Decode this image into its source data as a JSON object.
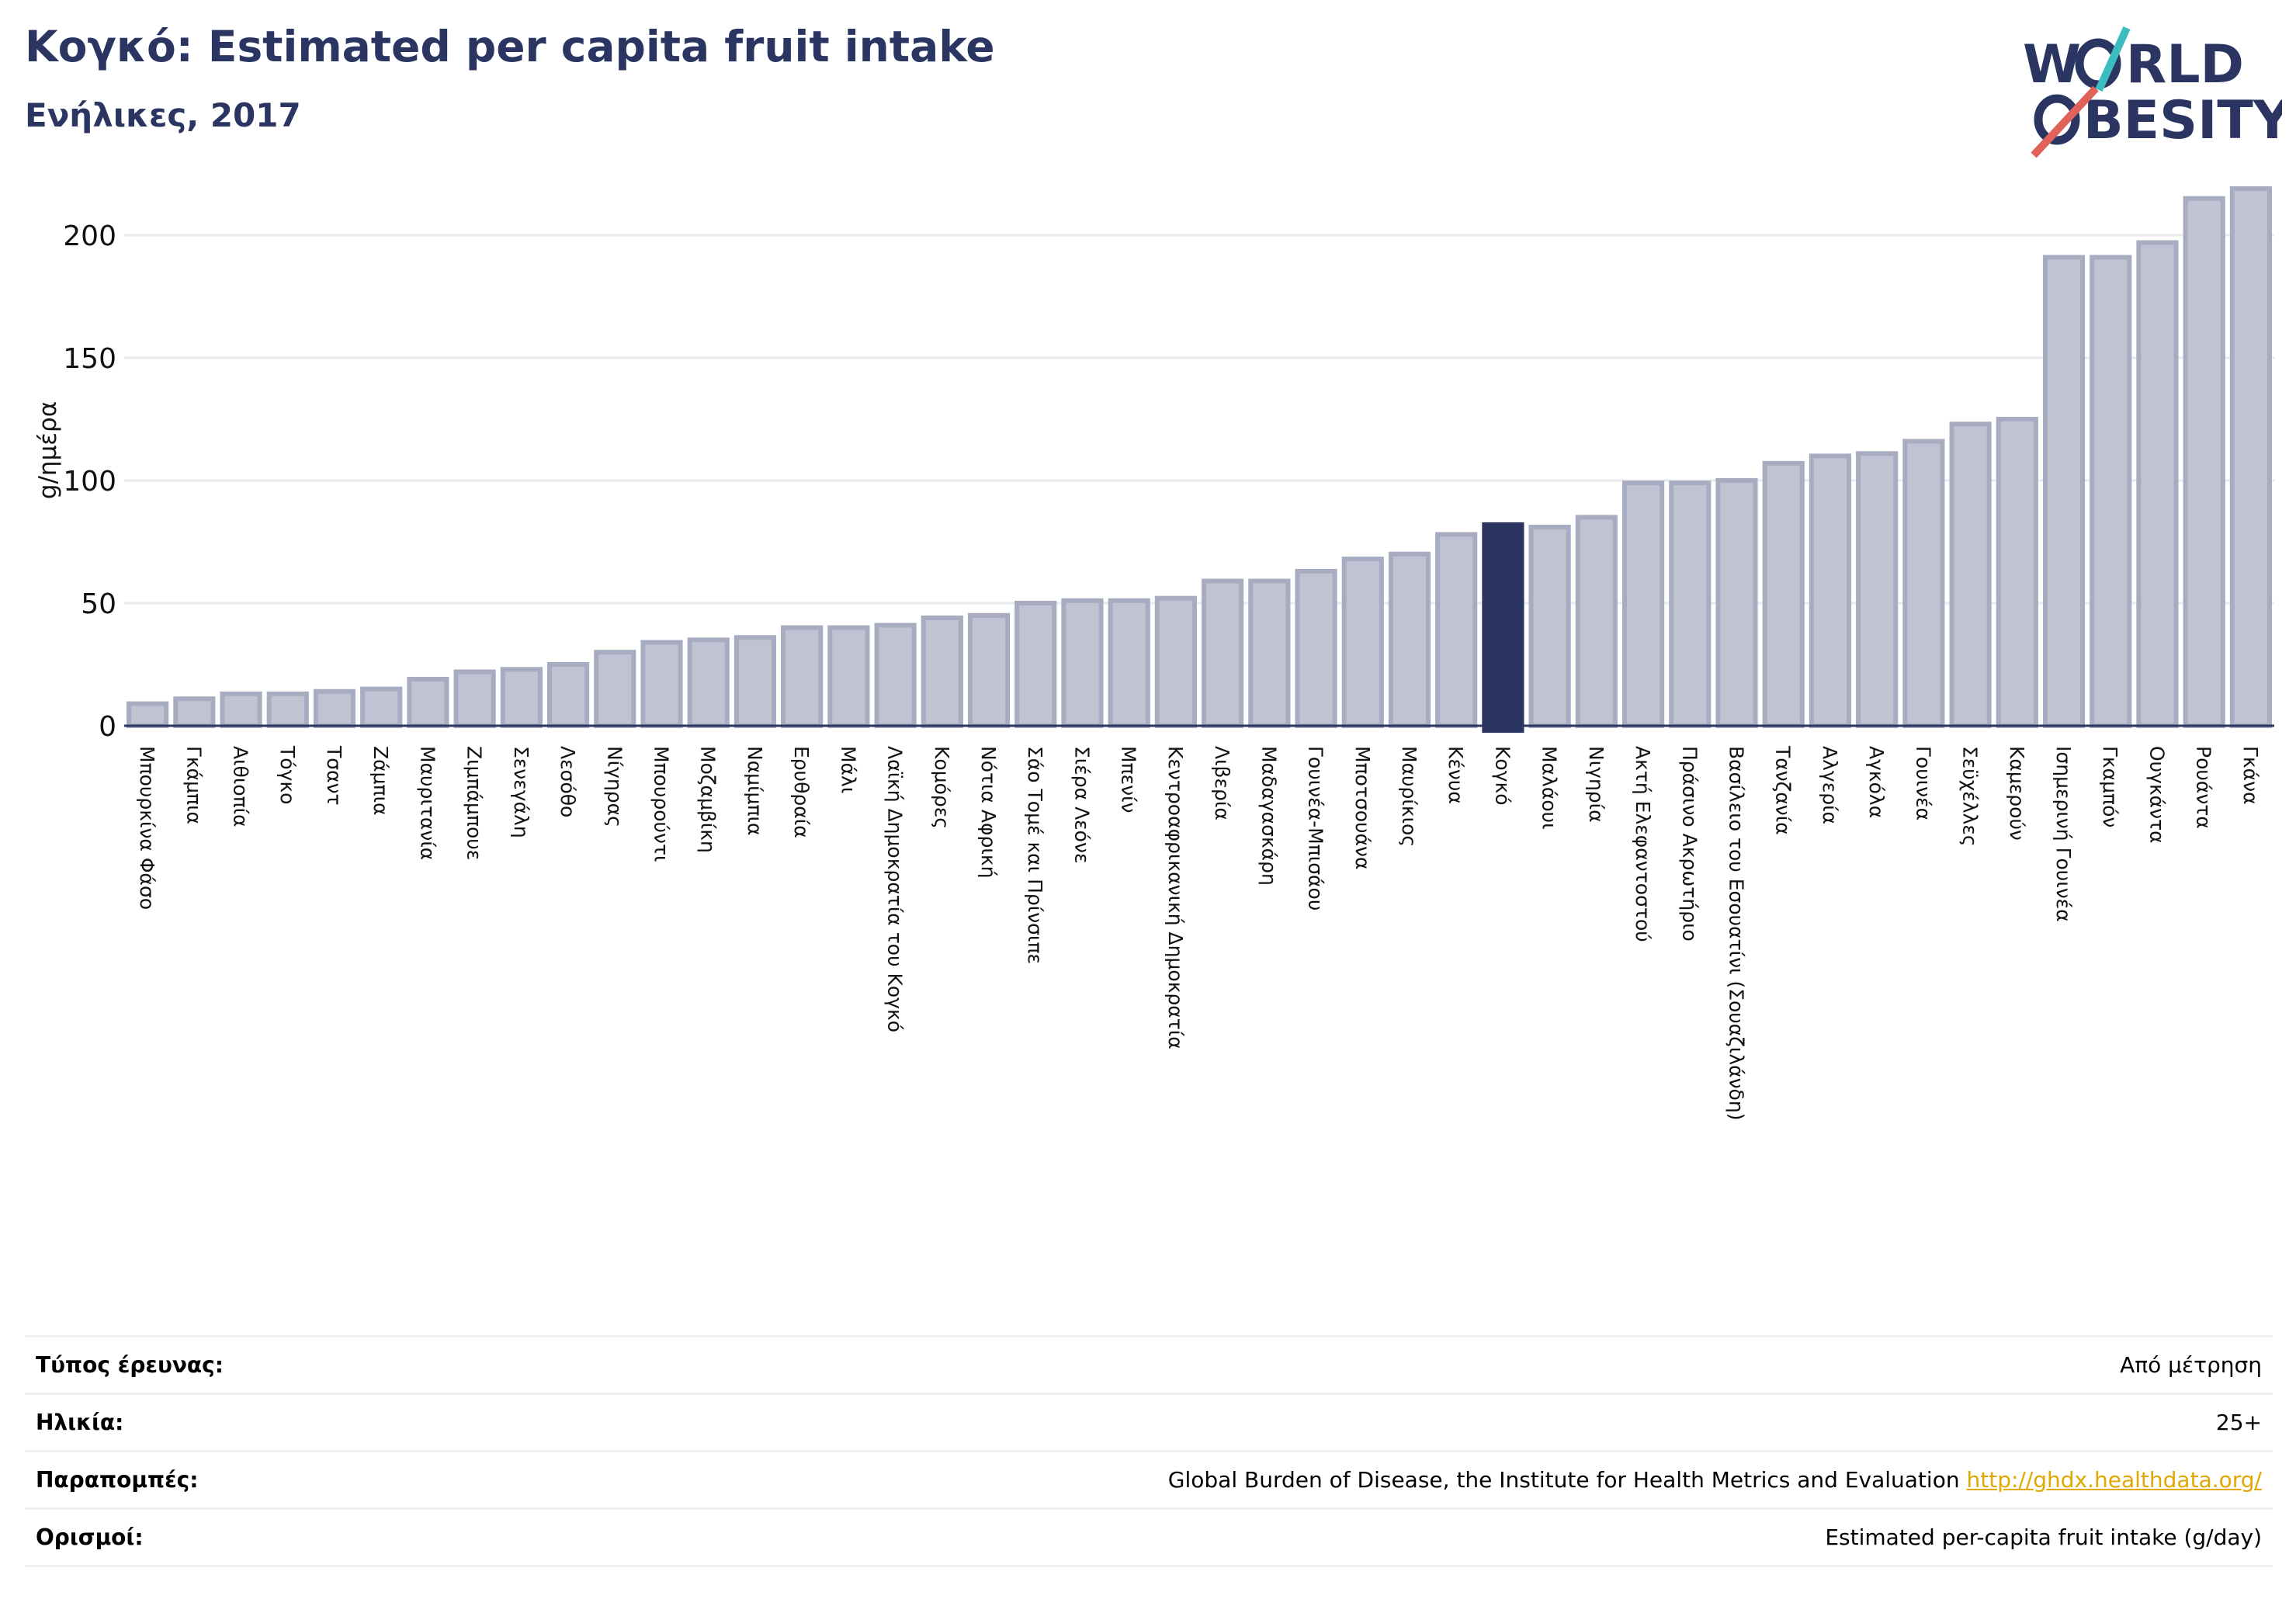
{
  "header": {
    "title": "Κογκό: Estimated per capita fruit intake",
    "subtitle": "Ενήλικες, 2017"
  },
  "logo": {
    "line1": "WORLD",
    "line2": "OBESITY"
  },
  "chart_data": {
    "type": "bar",
    "ylabel": "g/ημέρα",
    "ylim": [
      0,
      220
    ],
    "yticks": [
      0,
      50,
      100,
      150,
      200
    ],
    "grid": true,
    "highlight": "Κογκό",
    "colors": {
      "bar": "#c0c3d2",
      "bar_edge": "#a8acc1",
      "highlight": "#2a3562",
      "grid": "#e8eaef",
      "axis": "#2a3562"
    },
    "categories": [
      "Μπουρκίνα Φάσο",
      "Γκάμπια",
      "Αιθιοπία",
      "Τόγκο",
      "Τσαντ",
      "Ζάμπια",
      "Μαυριτανία",
      "Ζιμπάμπουε",
      "Σενεγάλη",
      "Λεσόθο",
      "Νίγηρας",
      "Μπουρούντι",
      "Μοζαμβίκη",
      "Ναμίμπια",
      "Ερυθραία",
      "Μάλι",
      "Λαϊκή Δημοκρατία του Κογκό",
      "Κομόρες",
      "Νότια Αφρική",
      "Σάο Τομέ και Πρίνσιπε",
      "Σιέρα Λεόνε",
      "Μπενίν",
      "Κεντροαφρικανική Δημοκρατία",
      "Λιβερία",
      "Μαδαγασκάρη",
      "Γουινέα-Μπισάου",
      "Μποτσουάνα",
      "Μαυρίκιος",
      "Κένυα",
      "Κογκό",
      "Μαλάουι",
      "Νιγηρία",
      "Ακτή Ελεφαντοστού",
      "Πράσινο Ακρωτήριο",
      "Βασίλειο του Εσουατίνι (Σουαζιλάνδη)",
      "Τανζανία",
      "Αλγερία",
      "Αγκόλα",
      "Γουινέα",
      "Σεϋχέλλες",
      "Καμερούν",
      "Ισημερινή Γουινέα",
      "Γκαμπόν",
      "Ουγκάντα",
      "Ρουάντα",
      "Γκάνα"
    ],
    "values": [
      9,
      11,
      13,
      13,
      14,
      15,
      19,
      22,
      23,
      25,
      30,
      34,
      35,
      36,
      40,
      40,
      41,
      44,
      45,
      50,
      51,
      51,
      52,
      59,
      59,
      63,
      68,
      70,
      78,
      82,
      81,
      85,
      99,
      99,
      100,
      107,
      110,
      111,
      116,
      123,
      125,
      191,
      191,
      197,
      215,
      219
    ]
  },
  "info": {
    "rows": [
      {
        "key": "Τύπος έρευνας:",
        "value": "Από μέτρηση"
      },
      {
        "key": "Ηλικία:",
        "value": "25+"
      },
      {
        "key": "Παραπομπές:",
        "value": "Global Burden of Disease, the Institute for Health Metrics and Evaluation",
        "link": "http://ghdx.healthdata.org/"
      },
      {
        "key": "Ορισμοί:",
        "value": "Estimated per-capita fruit intake (g/day)"
      }
    ]
  }
}
